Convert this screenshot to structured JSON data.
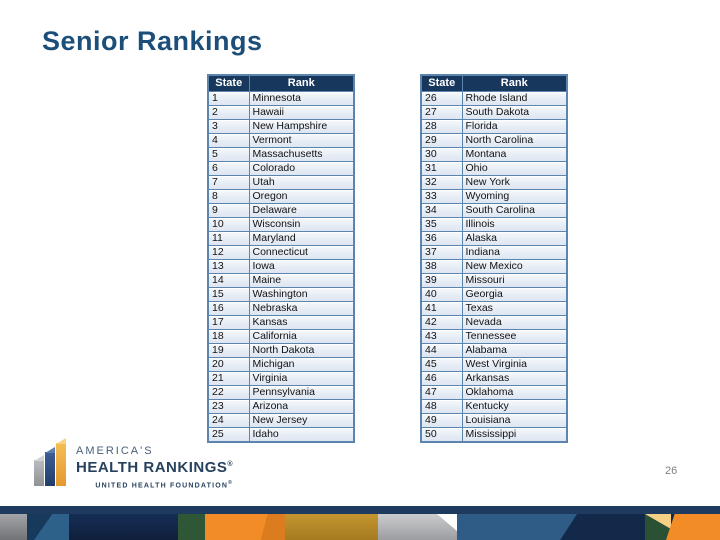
{
  "slide": {
    "title": "Senior Rankings",
    "page_number": "26"
  },
  "table_headers": {
    "col1": "State",
    "col2": "Rank"
  },
  "rankings": {
    "left_rows": [
      [
        "1",
        "Minnesota"
      ],
      [
        "2",
        "Hawaii"
      ],
      [
        "3",
        "New Hampshire"
      ],
      [
        "4",
        "Vermont"
      ],
      [
        "5",
        "Massachusetts"
      ],
      [
        "6",
        "Colorado"
      ],
      [
        "7",
        "Utah"
      ],
      [
        "8",
        "Oregon"
      ],
      [
        "9",
        "Delaware"
      ],
      [
        "10",
        "Wisconsin"
      ],
      [
        "11",
        "Maryland"
      ],
      [
        "12",
        "Connecticut"
      ],
      [
        "13",
        "Iowa"
      ],
      [
        "14",
        "Maine"
      ],
      [
        "15",
        "Washington"
      ],
      [
        "16",
        "Nebraska"
      ],
      [
        "17",
        "Kansas"
      ],
      [
        "18",
        "California"
      ],
      [
        "19",
        "North Dakota"
      ],
      [
        "20",
        "Michigan"
      ],
      [
        "21",
        "Virginia"
      ],
      [
        "22",
        "Pennsylvania"
      ],
      [
        "23",
        "Arizona"
      ],
      [
        "24",
        "New Jersey"
      ],
      [
        "25",
        "Idaho"
      ]
    ],
    "right_rows": [
      [
        "26",
        "Rhode Island"
      ],
      [
        "27",
        "South Dakota"
      ],
      [
        "28",
        "Florida"
      ],
      [
        "29",
        "North Carolina"
      ],
      [
        "30",
        "Montana"
      ],
      [
        "31",
        "Ohio"
      ],
      [
        "32",
        "New York"
      ],
      [
        "33",
        "Wyoming"
      ],
      [
        "34",
        "South Carolina"
      ],
      [
        "35",
        "Illinois"
      ],
      [
        "36",
        "Alaska"
      ],
      [
        "37",
        "Indiana"
      ],
      [
        "38",
        "New Mexico"
      ],
      [
        "39",
        "Missouri"
      ],
      [
        "40",
        "Georgia"
      ],
      [
        "41",
        "Texas"
      ],
      [
        "42",
        "Nevada"
      ],
      [
        "43",
        "Tennessee"
      ],
      [
        "44",
        "Alabama"
      ],
      [
        "45",
        "West Virginia"
      ],
      [
        "46",
        "Arkansas"
      ],
      [
        "47",
        "Oklahoma"
      ],
      [
        "48",
        "Kentucky"
      ],
      [
        "49",
        "Louisiana"
      ],
      [
        "50",
        "Mississippi"
      ]
    ]
  },
  "logo": {
    "line1": "AMERICA'S",
    "line2": "HEALTH RANKINGS",
    "line3": "UNITED HEALTH FOUNDATION",
    "registered_mark": "®"
  },
  "colors": {
    "title_navy": "#1B4E79",
    "table_header_bg": "#17375D",
    "table_border": "#5B84AF",
    "row_bg": "#E8EEF6",
    "footer_navy": "#1E3A5F",
    "footer_orange": "#F28C26",
    "footer_gold": "#BE8F2B",
    "footer_silver": "#B3B5B8",
    "footer_steel_blue": "#2E5C86",
    "footer_green": "#2F5635",
    "logo_navy": "#27425F",
    "logo_gray_bar": "#9B9DA0",
    "logo_gold_bar": "#ECA83D"
  }
}
